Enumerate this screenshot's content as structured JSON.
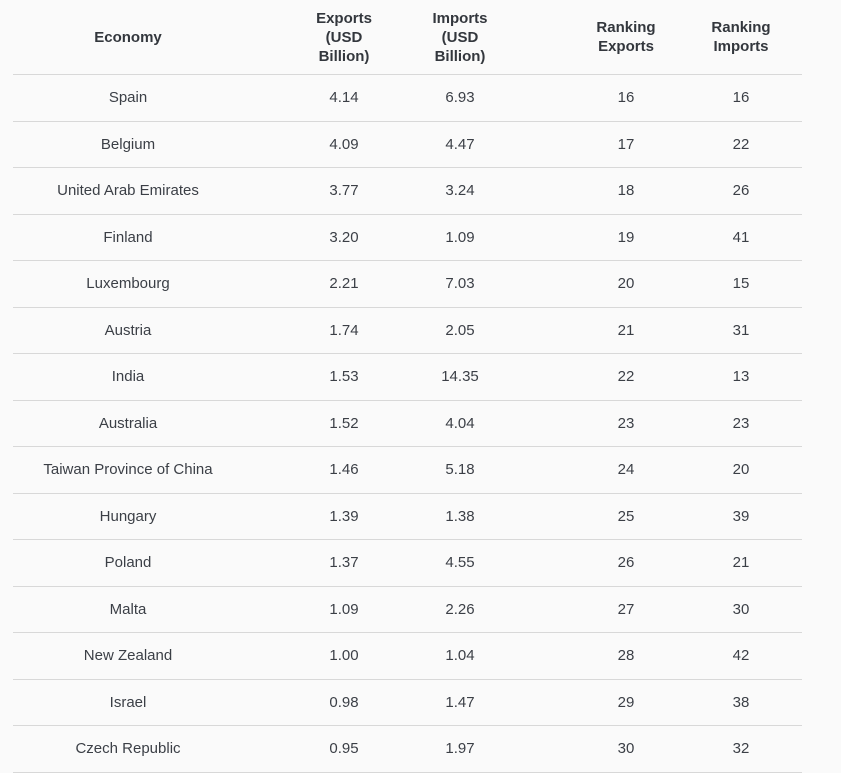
{
  "table": {
    "headers": [
      "Economy",
      "Exports (USD Billion)",
      "Imports (USD Billion)",
      "Ranking Exports",
      "Ranking Imports"
    ],
    "rows": [
      {
        "economy": "Spain",
        "exports": "4.14",
        "imports": "6.93",
        "ranking_exports": "16",
        "ranking_imports": "16"
      },
      {
        "economy": "Belgium",
        "exports": "4.09",
        "imports": "4.47",
        "ranking_exports": "17",
        "ranking_imports": "22"
      },
      {
        "economy": "United Arab Emirates",
        "exports": "3.77",
        "imports": "3.24",
        "ranking_exports": "18",
        "ranking_imports": "26"
      },
      {
        "economy": "Finland",
        "exports": "3.20",
        "imports": "1.09",
        "ranking_exports": "19",
        "ranking_imports": "41"
      },
      {
        "economy": "Luxembourg",
        "exports": "2.21",
        "imports": "7.03",
        "ranking_exports": "20",
        "ranking_imports": "15"
      },
      {
        "economy": "Austria",
        "exports": "1.74",
        "imports": "2.05",
        "ranking_exports": "21",
        "ranking_imports": "31"
      },
      {
        "economy": "India",
        "exports": "1.53",
        "imports": "14.35",
        "ranking_exports": "22",
        "ranking_imports": "13"
      },
      {
        "economy": "Australia",
        "exports": "1.52",
        "imports": "4.04",
        "ranking_exports": "23",
        "ranking_imports": "23"
      },
      {
        "economy": "Taiwan Province of China",
        "exports": "1.46",
        "imports": "5.18",
        "ranking_exports": "24",
        "ranking_imports": "20"
      },
      {
        "economy": "Hungary",
        "exports": "1.39",
        "imports": "1.38",
        "ranking_exports": "25",
        "ranking_imports": "39"
      },
      {
        "economy": "Poland",
        "exports": "1.37",
        "imports": "4.55",
        "ranking_exports": "26",
        "ranking_imports": "21"
      },
      {
        "economy": "Malta",
        "exports": "1.09",
        "imports": "2.26",
        "ranking_exports": "27",
        "ranking_imports": "30"
      },
      {
        "economy": "New Zealand",
        "exports": "1.00",
        "imports": "1.04",
        "ranking_exports": "28",
        "ranking_imports": "42"
      },
      {
        "economy": "Israel",
        "exports": "0.98",
        "imports": "1.47",
        "ranking_exports": "29",
        "ranking_imports": "38"
      },
      {
        "economy": "Czech Republic",
        "exports": "0.95",
        "imports": "1.97",
        "ranking_exports": "30",
        "ranking_imports": "32"
      }
    ]
  },
  "chart_data": {
    "type": "table",
    "title": "",
    "columns": [
      "Economy",
      "Exports (USD Billion)",
      "Imports (USD Billion)",
      "Ranking Exports",
      "Ranking Imports"
    ],
    "rows": [
      [
        "Spain",
        4.14,
        6.93,
        16,
        16
      ],
      [
        "Belgium",
        4.09,
        4.47,
        17,
        22
      ],
      [
        "United Arab Emirates",
        3.77,
        3.24,
        18,
        26
      ],
      [
        "Finland",
        3.2,
        1.09,
        19,
        41
      ],
      [
        "Luxembourg",
        2.21,
        7.03,
        20,
        15
      ],
      [
        "Austria",
        1.74,
        2.05,
        21,
        31
      ],
      [
        "India",
        1.53,
        14.35,
        22,
        13
      ],
      [
        "Australia",
        1.52,
        4.04,
        23,
        23
      ],
      [
        "Taiwan Province of China",
        1.46,
        5.18,
        24,
        20
      ],
      [
        "Hungary",
        1.39,
        1.38,
        25,
        39
      ],
      [
        "Poland",
        1.37,
        4.55,
        26,
        21
      ],
      [
        "Malta",
        1.09,
        2.26,
        27,
        30
      ],
      [
        "New Zealand",
        1.0,
        1.04,
        28,
        42
      ],
      [
        "Israel",
        0.98,
        1.47,
        29,
        38
      ],
      [
        "Czech Republic",
        0.95,
        1.97,
        30,
        32
      ]
    ]
  }
}
